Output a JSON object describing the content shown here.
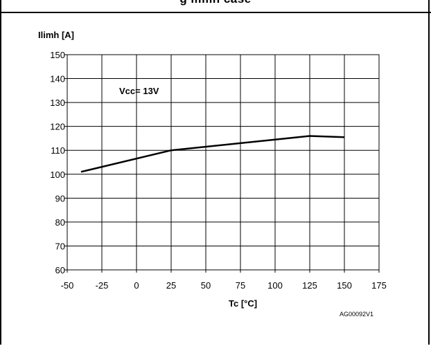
{
  "header": {
    "caption_fragment": "g    ilimh    case"
  },
  "chart_data": {
    "type": "line",
    "ylabel": "Ilimh [A]",
    "xlabel": "Tc [°C]",
    "annotation": "Vcc= 13V",
    "code": "AG00092V1",
    "xlim": [
      -50,
      175
    ],
    "ylim": [
      60,
      150
    ],
    "x_ticks": [
      -50,
      -25,
      0,
      25,
      50,
      75,
      100,
      125,
      150,
      175
    ],
    "y_ticks": [
      60,
      70,
      80,
      90,
      100,
      110,
      120,
      130,
      140,
      150
    ],
    "grid": true,
    "series": [
      {
        "x": [
          -40,
          25,
          125,
          150
        ],
        "y": [
          101,
          110,
          116,
          115.5
        ]
      }
    ]
  }
}
